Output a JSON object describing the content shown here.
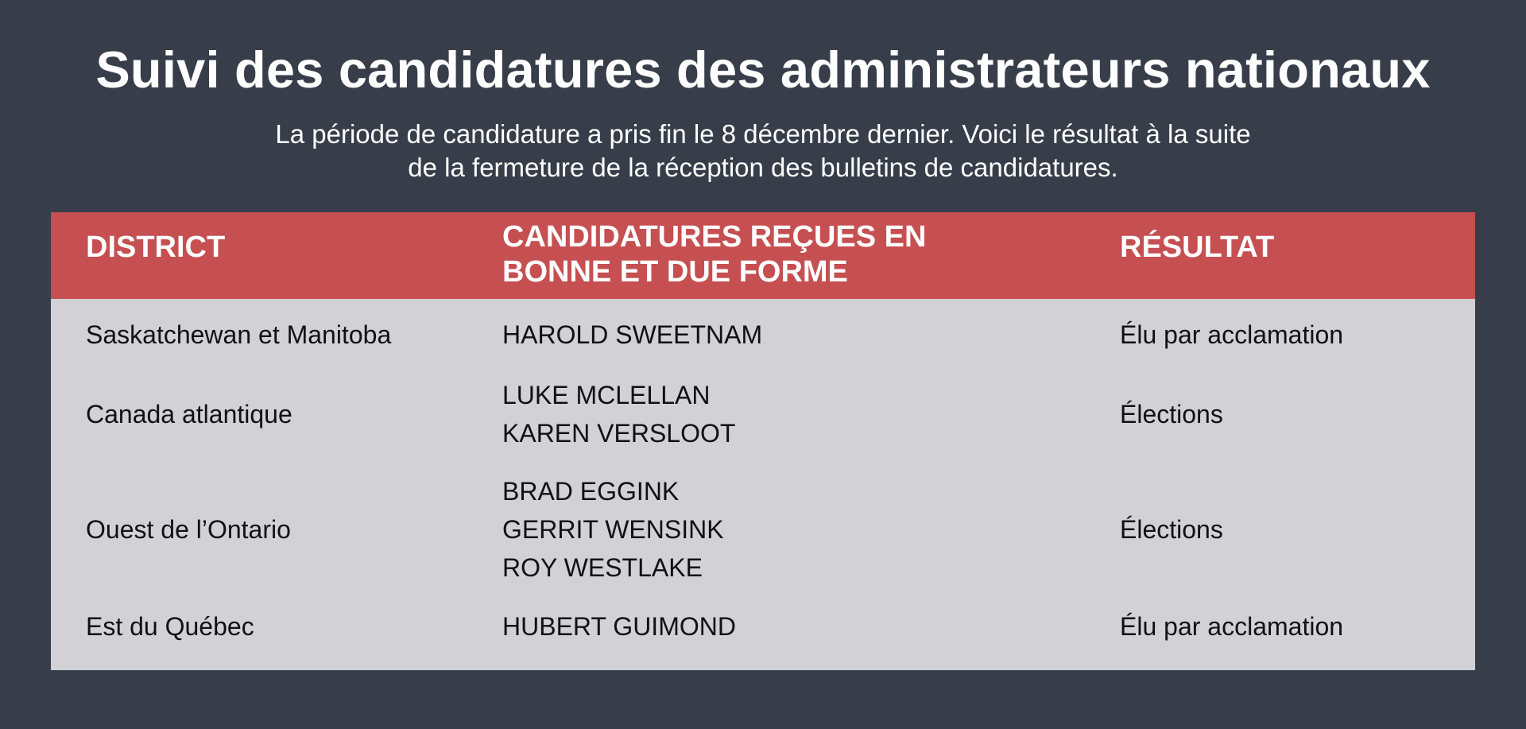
{
  "header": {
    "title": "Suivi des candidatures des administrateurs nationaux",
    "subtitle_line1": "La période de candidature a pris fin le 8 décembre dernier. Voici le résultat à la suite",
    "subtitle_line2": "de la fermeture de la réception des bulletins de candidatures."
  },
  "table": {
    "columns": [
      "DISTRICT",
      "CANDIDATURES REÇUES EN BONNE ET DUE FORME",
      "RÉSULTAT"
    ],
    "rows": [
      {
        "district": "Saskatchewan et Manitoba",
        "candidates": [
          "HAROLD SWEETNAM"
        ],
        "result": "Élu par acclamation"
      },
      {
        "district": "Canada atlantique",
        "candidates": [
          "LUKE MCLELLAN",
          "KAREN VERSLOOT"
        ],
        "result": "Élections"
      },
      {
        "district": "Ouest de l’Ontario",
        "candidates": [
          "BRAD EGGINK",
          "GERRIT WENSINK",
          "ROY WESTLAKE"
        ],
        "result": "Élections"
      },
      {
        "district": "Est du Québec",
        "candidates": [
          "HUBERT GUIMOND"
        ],
        "result": "Élu par acclamation"
      }
    ]
  }
}
